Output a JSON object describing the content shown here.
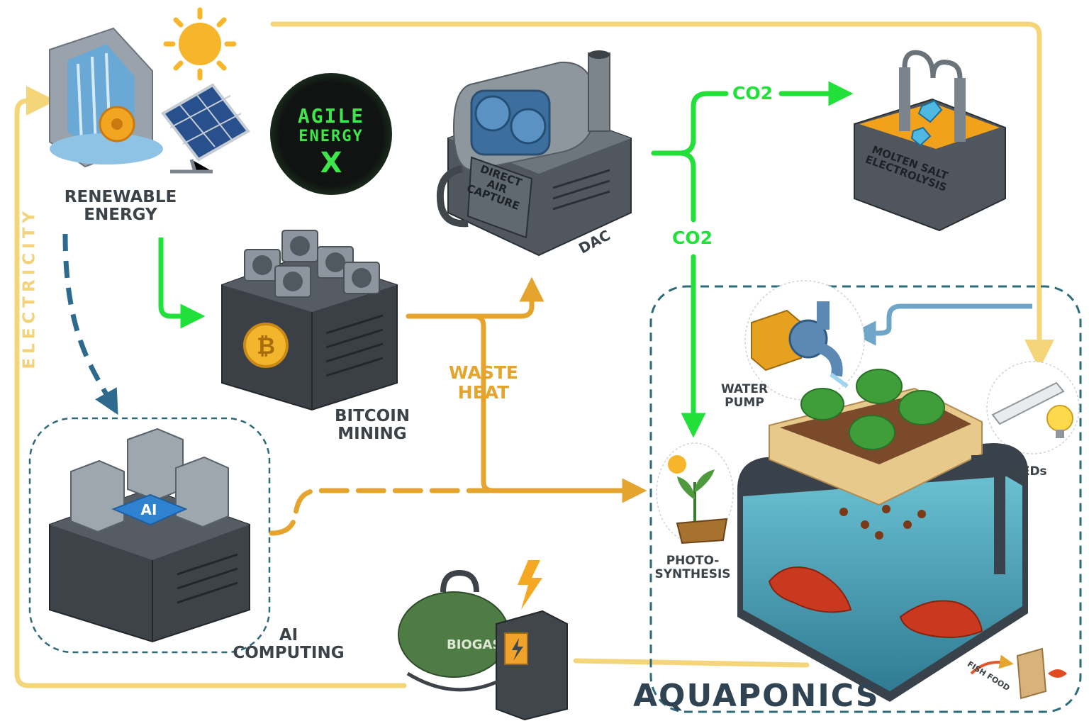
{
  "labels": {
    "renewable_energy_1": "RENEWABLE",
    "renewable_energy_2": "ENERGY",
    "bitcoin_mining_1": "BITCOIN",
    "bitcoin_mining_2": "MINING",
    "dac": "DAC",
    "direct_air_capture_1": "DIRECT",
    "direct_air_capture_2": "AIR",
    "direct_air_capture_3": "CAPTURE",
    "molten_salt_1": "MOLTEN SALT",
    "molten_salt_2": "ELECTROLYSIS",
    "co2_top": "CO2",
    "co2_mid": "CO2",
    "waste_heat_1": "WASTE",
    "waste_heat_2": "HEAT",
    "ai_computing_1": "AI",
    "ai_computing_2": "COMPUTING",
    "ai_chip": "AI",
    "water_pump_1": "WATER",
    "water_pump_2": "PUMP",
    "leds": "LEDs",
    "photosynthesis_1": "PHOTO-",
    "photosynthesis_2": "SYNTHESIS",
    "biogas": "BIOGAS",
    "fish_food": "FISH FOOD",
    "electricity": "ELECTRICITY",
    "aquaponics": "AQUAPONICS"
  },
  "logo": {
    "line1": "AGILE",
    "line2": "ENERGY",
    "line3": "X"
  },
  "colors": {
    "electricity": "#f5d57a",
    "co2": "#22e03a",
    "waste_heat": "#e5a42e",
    "water": "#6fa6c8",
    "ai_dashed": "#2d6a8e",
    "aquaponics_border": "#2d6a7a"
  }
}
